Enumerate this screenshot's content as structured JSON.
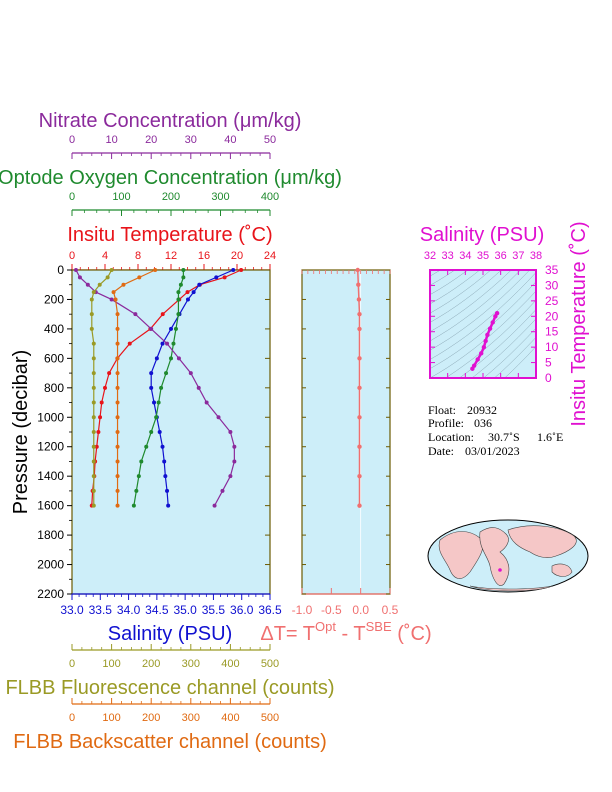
{
  "colors": {
    "nitrate": "#8b2a9c",
    "oxygen": "#1f8a2e",
    "temperature": "#e8141a",
    "salinity": "#1010d0",
    "fluorescence": "#9a9a25",
    "backscatter": "#e06a12",
    "delta": "#f07070",
    "magenta": "#e010d0",
    "panel_bg": "#cdeef9",
    "frame": "#6b5a00"
  },
  "labels": {
    "nitrate": "Nitrate Concentration (μm/kg)",
    "oxygen": "Optode Oxygen Concentration (μm/kg)",
    "temperature": "Insitu Temperature (˚C)",
    "pressure": "Pressure (decibar)",
    "salinity": "Salinity (PSU)",
    "fluorescence": "FLBB Fluorescence channel (counts)",
    "backscatter": "FLBB Backscatter channel (counts)",
    "delta_prefix": "ΔT= T",
    "delta_sup1": "Opt",
    "delta_mid": " - T",
    "delta_sup2": "SBE",
    "delta_suffix": " (˚C)",
    "ts_salinity": "Salinity (PSU)",
    "ts_temperature": "Insitu Temperature (˚C)"
  },
  "float_info": {
    "float_label": "Float:",
    "float_value": "20932",
    "profile_label": "Profile:",
    "profile_value": "036",
    "location_label": "Location:",
    "location_lat": "30.7˚S",
    "location_lon": "1.6˚E",
    "date_label": "Date:",
    "date_value": "03/01/2023"
  },
  "chart_data": [
    {
      "type": "line",
      "name": "main-profile",
      "ylabel": "Pressure (decibar)",
      "ylim": [
        2200,
        0
      ],
      "yticks": [
        "0",
        "200",
        "400",
        "600",
        "800",
        "1000",
        "1200",
        "1400",
        "1600",
        "1800",
        "2000",
        "2200"
      ],
      "pressure": [
        0,
        50,
        100,
        150,
        200,
        300,
        400,
        500,
        600,
        700,
        800,
        900,
        1000,
        1100,
        1200,
        1300,
        1400,
        1500,
        1600
      ],
      "axes": {
        "nitrate": {
          "label": "Nitrate Concentration (μm/kg)",
          "range": [
            0,
            50
          ],
          "ticks": [
            "0",
            "10",
            "20",
            "30",
            "40",
            "50"
          ]
        },
        "oxygen": {
          "label": "Optode Oxygen Concentration (μm/kg)",
          "range": [
            0,
            400
          ],
          "ticks": [
            "0",
            "100",
            "200",
            "300",
            "400"
          ]
        },
        "temperature": {
          "label": "Insitu Temperature (˚C)",
          "range": [
            0,
            24
          ],
          "ticks": [
            "0",
            "4",
            "8",
            "12",
            "16",
            "20",
            "24"
          ]
        },
        "salinity": {
          "label": "Salinity (PSU)",
          "range": [
            33.0,
            36.5
          ],
          "ticks": [
            "33.0",
            "33.5",
            "34.0",
            "34.5",
            "35.0",
            "35.5",
            "36.0",
            "36.5"
          ]
        },
        "fluorescence": {
          "label": "FLBB Fluorescence channel (counts)",
          "range": [
            0,
            500
          ],
          "ticks": [
            "0",
            "100",
            "200",
            "300",
            "400",
            "500"
          ]
        },
        "backscatter": {
          "label": "FLBB Backscatter channel (counts)",
          "range": [
            0,
            500
          ],
          "ticks": [
            "0",
            "100",
            "200",
            "300",
            "400",
            "500"
          ]
        }
      },
      "series": [
        {
          "key": "temperature",
          "values": [
            20.5,
            18.5,
            15.5,
            14.0,
            13.0,
            11.0,
            9.5,
            7.0,
            5.5,
            4.5,
            4.0,
            3.6,
            3.4,
            3.2,
            3.0,
            2.8,
            2.7,
            2.5,
            2.4
          ]
        },
        {
          "key": "salinity",
          "values": [
            35.85,
            35.55,
            35.25,
            35.15,
            35.05,
            34.9,
            34.75,
            34.6,
            34.5,
            34.4,
            34.4,
            34.45,
            34.5,
            34.55,
            34.6,
            34.63,
            34.65,
            34.68,
            34.7
          ]
        },
        {
          "key": "oxygen",
          "values": [
            225,
            225,
            220,
            215,
            215,
            215,
            210,
            205,
            200,
            190,
            180,
            175,
            170,
            160,
            150,
            140,
            135,
            130,
            125
          ]
        },
        {
          "key": "nitrate",
          "values": [
            1,
            2,
            4,
            6,
            10,
            16,
            20,
            24,
            27,
            30,
            32,
            34,
            37,
            40,
            41,
            41,
            40,
            38,
            36
          ]
        },
        {
          "key": "fluorescence",
          "values": [
            100,
            90,
            70,
            55,
            50,
            50,
            50,
            55,
            55,
            55,
            55,
            55,
            55,
            55,
            55,
            55,
            55,
            55,
            55
          ]
        },
        {
          "key": "backscatter",
          "values": [
            210,
            170,
            130,
            105,
            110,
            115,
            115,
            115,
            115,
            115,
            115,
            115,
            115,
            115,
            115,
            115,
            115,
            115,
            115
          ]
        }
      ]
    },
    {
      "type": "line",
      "name": "delta-t",
      "xlabel": "ΔT= TOpt - TSBE (˚C)",
      "xlim": [
        -1.0,
        0.5
      ],
      "xticks": [
        "-1.0",
        "-0.5",
        "0.0",
        "0.5"
      ],
      "ylim": [
        2200,
        0
      ],
      "pressure": [
        0,
        100,
        200,
        300,
        400,
        600,
        800,
        1000,
        1200,
        1400,
        1600
      ],
      "values": [
        -0.05,
        -0.04,
        -0.03,
        -0.02,
        -0.02,
        -0.02,
        -0.02,
        -0.02,
        -0.02,
        -0.02,
        -0.02
      ]
    },
    {
      "type": "scatter",
      "name": "ts-diagram",
      "xlabel": "Salinity (PSU)",
      "ylabel": "Insitu Temperature (˚C)",
      "xlim": [
        32,
        38
      ],
      "ylim": [
        0,
        35
      ],
      "xticks": [
        "32",
        "33",
        "34",
        "35",
        "36",
        "37",
        "38"
      ],
      "yticks": [
        "0",
        "5",
        "10",
        "15",
        "20",
        "25",
        "30",
        "35"
      ],
      "salinity": [
        34.4,
        34.5,
        34.7,
        34.9,
        35.05,
        35.15,
        35.25,
        35.4,
        35.55,
        35.7,
        35.8
      ],
      "temperature": [
        3.0,
        4.0,
        6.0,
        8.0,
        10.0,
        12.0,
        14.0,
        16.0,
        18.0,
        20.0,
        21.0
      ]
    }
  ]
}
